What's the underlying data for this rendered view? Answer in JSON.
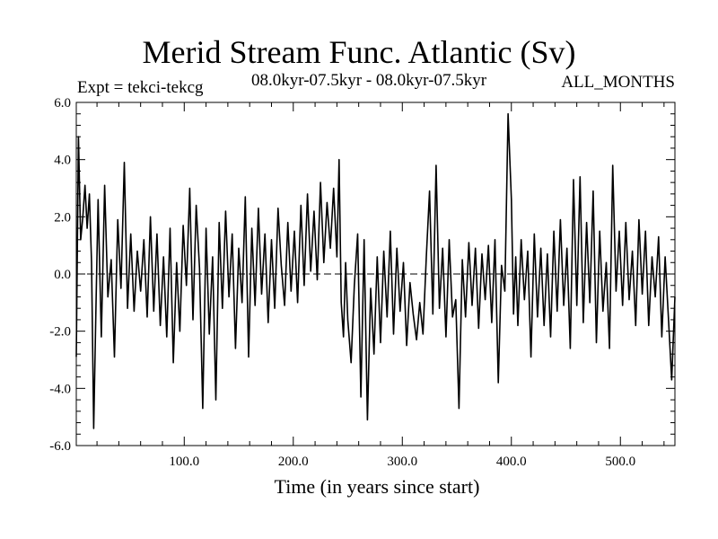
{
  "chart_data": {
    "type": "line",
    "title": "Merid Stream Func. Atlantic (Sv)",
    "left_label": "Expt = tekci-tekcg",
    "center_label": "08.0kyr-07.5kyr - 08.0kyr-07.5kyr",
    "right_label": "ALL_MONTHS",
    "xlabel": "Time (in years since start)",
    "ylabel": "",
    "xlim": [
      1,
      550
    ],
    "ylim": [
      -6.0,
      6.0
    ],
    "x_ticks": [
      100,
      200,
      300,
      400,
      500
    ],
    "x_tick_labels": [
      "100.0",
      "200.0",
      "300.0",
      "400.0",
      "500.0"
    ],
    "y_ticks": [
      -6,
      -4,
      -2,
      0,
      2,
      4,
      6
    ],
    "y_tick_labels": [
      "-6.0",
      "-4.0",
      "-2.0",
      "0.0",
      "2.0",
      "4.0",
      "6.0"
    ],
    "reference_line": 0.0,
    "series": [
      {
        "name": "Merid Stream Func. Atlantic",
        "color": "#000000",
        "x": [
          1,
          3,
          5,
          7,
          9,
          11,
          13,
          15,
          17,
          19,
          21,
          24,
          27,
          30,
          33,
          36,
          39,
          42,
          45,
          48,
          51,
          54,
          57,
          60,
          63,
          66,
          69,
          72,
          75,
          78,
          81,
          84,
          87,
          90,
          93,
          96,
          99,
          102,
          105,
          108,
          111,
          114,
          117,
          120,
          123,
          126,
          129,
          132,
          135,
          138,
          141,
          144,
          147,
          150,
          153,
          156,
          159,
          162,
          165,
          168,
          171,
          174,
          177,
          180,
          183,
          186,
          189,
          192,
          195,
          198,
          201,
          204,
          207,
          210,
          213,
          216,
          219,
          222,
          225,
          228,
          231,
          234,
          237,
          240,
          242,
          244,
          246,
          248,
          250,
          253,
          256,
          259,
          262,
          265,
          268,
          271,
          274,
          277,
          280,
          283,
          286,
          289,
          292,
          295,
          298,
          301,
          304,
          307,
          310,
          313,
          316,
          319,
          322,
          325,
          328,
          331,
          334,
          337,
          340,
          343,
          346,
          349,
          352,
          355,
          358,
          361,
          364,
          367,
          370,
          373,
          376,
          379,
          382,
          385,
          388,
          391,
          394,
          397,
          400,
          402,
          404,
          406,
          409,
          412,
          415,
          418,
          421,
          424,
          427,
          430,
          433,
          436,
          439,
          442,
          445,
          448,
          451,
          454,
          457,
          460,
          463,
          466,
          469,
          472,
          475,
          478,
          481,
          484,
          487,
          490,
          493,
          496,
          499,
          502,
          505,
          508,
          511,
          514,
          517,
          520,
          523,
          526,
          529,
          532,
          535,
          538,
          541,
          544,
          547,
          550
        ],
        "values": [
          -2.9,
          4.8,
          1.2,
          2.0,
          3.1,
          1.6,
          2.8,
          0.4,
          -5.4,
          -1.2,
          2.6,
          -2.2,
          3.1,
          -0.8,
          0.5,
          -2.9,
          1.9,
          -0.5,
          3.9,
          -1.2,
          1.4,
          -1.3,
          0.8,
          -0.6,
          1.2,
          -1.5,
          2.0,
          -1.3,
          1.4,
          -1.8,
          0.6,
          -2.2,
          1.6,
          -3.1,
          0.4,
          -2.0,
          1.7,
          -0.4,
          3.0,
          -1.6,
          2.4,
          0.2,
          -4.7,
          1.6,
          -2.1,
          0.6,
          -4.4,
          1.8,
          -1.2,
          2.2,
          -0.8,
          1.4,
          -2.6,
          0.9,
          -1.0,
          2.7,
          -2.9,
          1.6,
          -1.1,
          2.3,
          -0.7,
          1.4,
          -1.7,
          1.2,
          -1.2,
          2.3,
          0.3,
          -1.1,
          1.8,
          -0.6,
          1.5,
          -1.0,
          2.4,
          -0.4,
          2.8,
          0.1,
          2.2,
          -0.2,
          3.2,
          0.4,
          2.5,
          0.9,
          3.0,
          0.6,
          4.0,
          -1.0,
          -2.2,
          0.4,
          -1.6,
          -3.1,
          -0.4,
          1.4,
          -4.3,
          1.2,
          -5.1,
          -0.5,
          -2.8,
          0.6,
          -2.4,
          0.8,
          -1.5,
          1.5,
          -2.1,
          0.9,
          -1.3,
          0.4,
          -2.5,
          -0.3,
          -1.4,
          -2.3,
          -1.0,
          -2.1,
          0.6,
          2.9,
          -1.4,
          3.8,
          -1.2,
          0.9,
          -2.2,
          1.2,
          -1.5,
          -0.9,
          -4.7,
          0.5,
          -1.5,
          1.1,
          -1.1,
          0.9,
          -1.9,
          0.7,
          -0.9,
          1.0,
          -1.7,
          1.2,
          -3.8,
          0.3,
          -0.6,
          5.6,
          2.6,
          -1.4,
          0.6,
          -1.8,
          1.2,
          -0.9,
          0.8,
          -2.9,
          1.4,
          -1.5,
          0.9,
          -1.8,
          0.7,
          -2.2,
          1.5,
          -1.3,
          1.9,
          -1.1,
          0.9,
          -2.6,
          3.3,
          -1.1,
          3.4,
          -1.7,
          1.8,
          -1.0,
          2.9,
          -2.4,
          1.5,
          -1.3,
          0.4,
          -2.6,
          3.8,
          -0.6,
          1.5,
          -1.1,
          1.8,
          -0.9,
          0.8,
          -1.8,
          1.9,
          -0.7,
          1.5,
          -1.8,
          0.6,
          -0.8,
          1.3,
          -2.2,
          0.6,
          -1.5,
          -3.7,
          -0.8
        ]
      }
    ]
  }
}
